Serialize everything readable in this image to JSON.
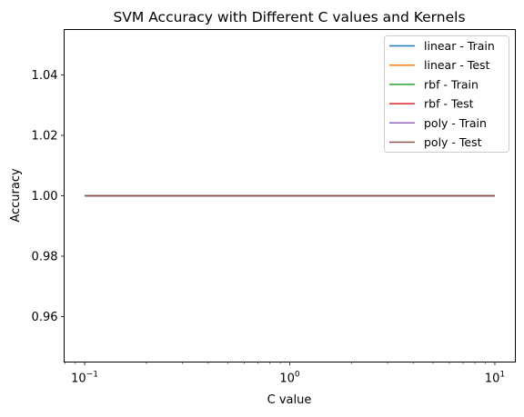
{
  "chart_data": {
    "type": "line",
    "title": "SVM Accuracy with Different C values and Kernels",
    "xlabel": "C value",
    "ylabel": "Accuracy",
    "x_scale": "log",
    "x": [
      0.1,
      1,
      10
    ],
    "xlim": [
      0.0794,
      12.59
    ],
    "ylim": [
      0.945,
      1.055
    ],
    "xticks": [
      {
        "value": 0.1,
        "base": "10",
        "exp": "−1"
      },
      {
        "value": 1,
        "base": "10",
        "exp": "0"
      },
      {
        "value": 10,
        "base": "10",
        "exp": "1"
      }
    ],
    "yticks": [
      {
        "value": 0.96,
        "label": "0.96"
      },
      {
        "value": 0.98,
        "label": "0.98"
      },
      {
        "value": 1.0,
        "label": "1.00"
      },
      {
        "value": 1.02,
        "label": "1.02"
      },
      {
        "value": 1.04,
        "label": "1.04"
      }
    ],
    "grid": false,
    "legend_position": "top-right",
    "series": [
      {
        "name": "linear - Train",
        "color": "#1f77b4",
        "values": [
          1.0,
          1.0,
          1.0
        ]
      },
      {
        "name": "linear - Test",
        "color": "#ff7f0e",
        "values": [
          1.0,
          1.0,
          1.0
        ]
      },
      {
        "name": "rbf - Train",
        "color": "#2ca02c",
        "values": [
          1.0,
          1.0,
          1.0
        ]
      },
      {
        "name": "rbf - Test",
        "color": "#d62728",
        "values": [
          1.0,
          1.0,
          1.0
        ]
      },
      {
        "name": "poly - Train",
        "color": "#9467bd",
        "values": [
          1.0,
          1.0,
          1.0
        ]
      },
      {
        "name": "poly - Test",
        "color": "#8c564b",
        "values": [
          1.0,
          1.0,
          1.0
        ]
      }
    ]
  }
}
